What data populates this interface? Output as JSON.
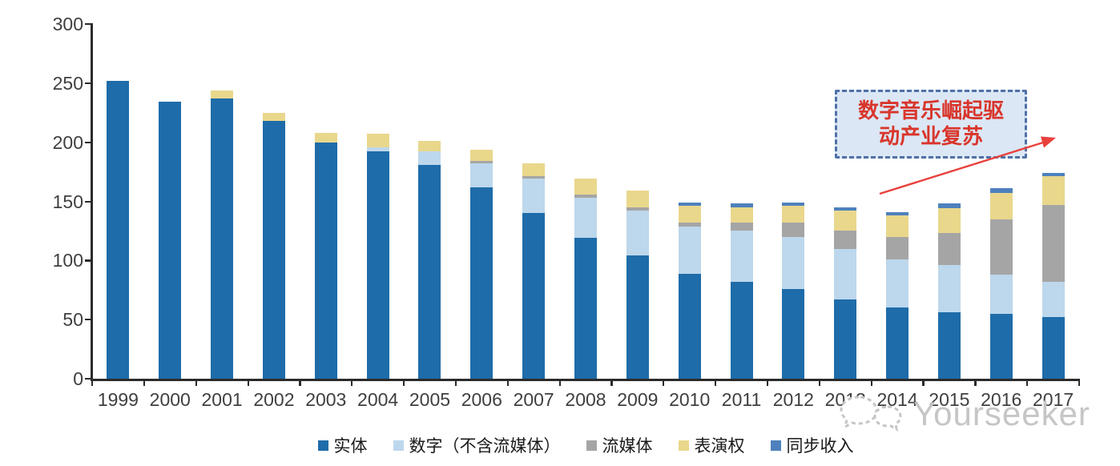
{
  "chart_data": {
    "type": "bar",
    "stacked": true,
    "title": "",
    "xlabel": "",
    "ylabel": "",
    "categories": [
      "1999",
      "2000",
      "2001",
      "2002",
      "2003",
      "2004",
      "2005",
      "2006",
      "2007",
      "2008",
      "2009",
      "2010",
      "2011",
      "2012",
      "2013",
      "2014",
      "2015",
      "2016",
      "2017"
    ],
    "series": [
      {
        "name": "实体",
        "color": "#1E6CA9",
        "values": [
          252,
          234,
          237,
          218,
          200,
          192,
          181,
          162,
          140,
          119,
          104,
          89,
          82,
          76,
          67,
          60,
          56,
          55,
          52
        ]
      },
      {
        "name": "数字（不含流媒体）",
        "color": "#BDD7EC",
        "values": [
          0,
          0,
          0,
          0,
          0,
          4,
          11,
          20,
          29,
          34,
          38,
          40,
          43,
          44,
          43,
          41,
          40,
          33,
          30
        ]
      },
      {
        "name": "流媒体",
        "color": "#A5A5A5",
        "values": [
          0,
          0,
          0,
          0,
          0,
          0,
          0,
          2,
          2,
          3,
          3,
          3,
          7,
          12,
          15,
          19,
          27,
          47,
          65
        ]
      },
      {
        "name": "表演权",
        "color": "#E9D78C",
        "values": [
          0,
          0,
          7,
          7,
          8,
          11,
          9,
          10,
          11,
          13,
          14,
          14,
          13,
          14,
          17,
          18,
          21,
          22,
          24
        ]
      },
      {
        "name": "同步收入",
        "color": "#4E81BD",
        "values": [
          0,
          0,
          0,
          0,
          0,
          0,
          0,
          0,
          0,
          0,
          0,
          3,
          3,
          3,
          3,
          3,
          4,
          4,
          3
        ]
      }
    ],
    "ylim": [
      0,
      300
    ],
    "yticks": [
      0,
      50,
      100,
      150,
      200,
      250,
      300
    ],
    "grid": false,
    "legend_position": "bottom"
  },
  "annotation": {
    "line1": "数字音乐崛起驱",
    "line2": "动产业复苏",
    "fill_color": "#dbe7f5",
    "border_color": "#4f71a6",
    "text_color": "#d9352b",
    "arrow_color": "#e8413c"
  },
  "watermark": {
    "icon": "chat-bubbles-icon",
    "text": "Yourseeker",
    "color": "#c6c6c6"
  }
}
